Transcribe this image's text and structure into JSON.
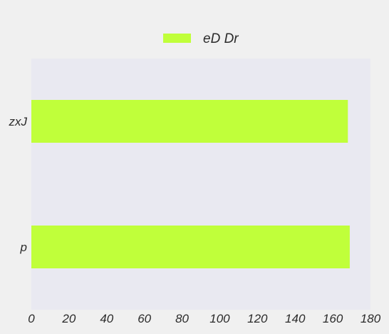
{
  "chart_data": {
    "type": "bar",
    "orientation": "horizontal",
    "categories": [
      "zxJ",
      "p"
    ],
    "series": [
      {
        "name": "eD Dr",
        "values": [
          168,
          169
        ],
        "color": "#c0ff3a"
      }
    ],
    "xlim": [
      0,
      180
    ],
    "x_ticks": [
      0,
      20,
      40,
      60,
      80,
      100,
      120,
      140,
      160,
      180
    ],
    "title": "",
    "xlabel": "",
    "ylabel": "",
    "grid": false,
    "legend": "top-center",
    "colors": {
      "background": "#f0f0f0",
      "plot_background": "#e9e9f1"
    }
  }
}
